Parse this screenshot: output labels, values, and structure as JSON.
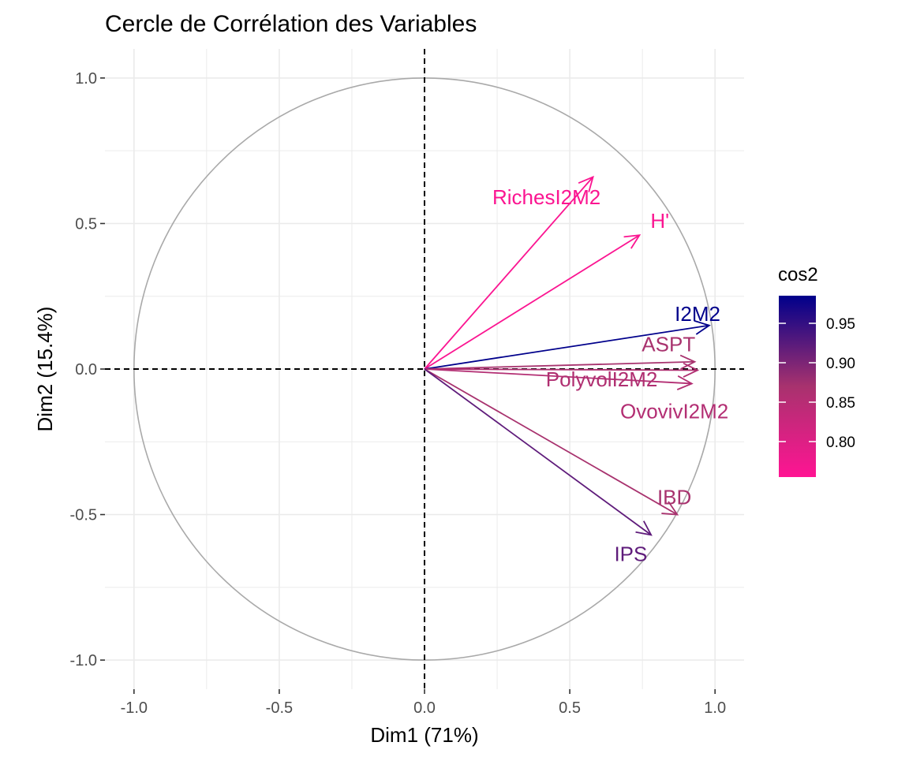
{
  "chart_data": {
    "type": "scatter",
    "title": "Cercle de Corrélation des Variables",
    "xlabel": "Dim1 (71%)",
    "ylabel": "Dim2 (15.4%)",
    "xlim": [
      -1.1,
      1.1
    ],
    "ylim": [
      -1.1,
      1.1
    ],
    "x_ticks": [
      -1.0,
      -0.5,
      0.0,
      0.5,
      1.0
    ],
    "x_tick_labels": [
      "-1.0",
      "-0.5",
      "0.0",
      "0.5",
      "1.0"
    ],
    "y_ticks": [
      1.0,
      0.5,
      0.0,
      -0.5,
      -1.0
    ],
    "y_tick_labels": [
      "1.0",
      "0.5",
      "0.0",
      "-0.5",
      "-1.0"
    ],
    "grid": true,
    "unit_circle": true,
    "reference_lines": "dashed at x=0 and y=0",
    "variables": [
      {
        "name": "RichesI2M2",
        "x": 0.58,
        "y": 0.66,
        "cos2": 0.76,
        "label_x": 0.42,
        "label_y": 0.59
      },
      {
        "name": "H'",
        "x": 0.74,
        "y": 0.46,
        "cos2": 0.76,
        "label_x": 0.81,
        "label_y": 0.51
      },
      {
        "name": "I2M2",
        "x": 0.98,
        "y": 0.15,
        "cos2": 0.985,
        "label_x": 0.94,
        "label_y": 0.19
      },
      {
        "name": "ASPT",
        "x": 0.93,
        "y": 0.025,
        "cos2": 0.87,
        "label_x": 0.84,
        "label_y": 0.085
      },
      {
        "name": "PolyvolI2M2",
        "x": 0.94,
        "y": -0.004,
        "cos2": 0.86,
        "label_x": 0.61,
        "label_y": -0.035
      },
      {
        "name": "OvovivI2M2",
        "x": 0.92,
        "y": -0.05,
        "cos2": 0.855,
        "label_x": 0.86,
        "label_y": -0.145
      },
      {
        "name": "IBD",
        "x": 0.87,
        "y": -0.5,
        "cos2": 0.87,
        "label_x": 0.86,
        "label_y": -0.44
      },
      {
        "name": "IPS",
        "x": 0.78,
        "y": -0.57,
        "cos2": 0.92,
        "label_x": 0.71,
        "label_y": -0.635
      }
    ],
    "legend": {
      "title": "cos2",
      "placement": "right",
      "range": [
        0.755,
        0.985
      ],
      "tick_values": [
        0.95,
        0.9,
        0.85,
        0.8
      ],
      "tick_labels": [
        "0.95",
        "0.90",
        "0.85",
        "0.80"
      ],
      "low_color": "#FF1493",
      "mid_color": "#A8326E",
      "high_color": "#00008B"
    },
    "colors": {
      "grid": "#ebebeb",
      "circle": "#a9a9a9",
      "tick_text": "#4d4d4d",
      "reference_line": "#000000"
    }
  }
}
